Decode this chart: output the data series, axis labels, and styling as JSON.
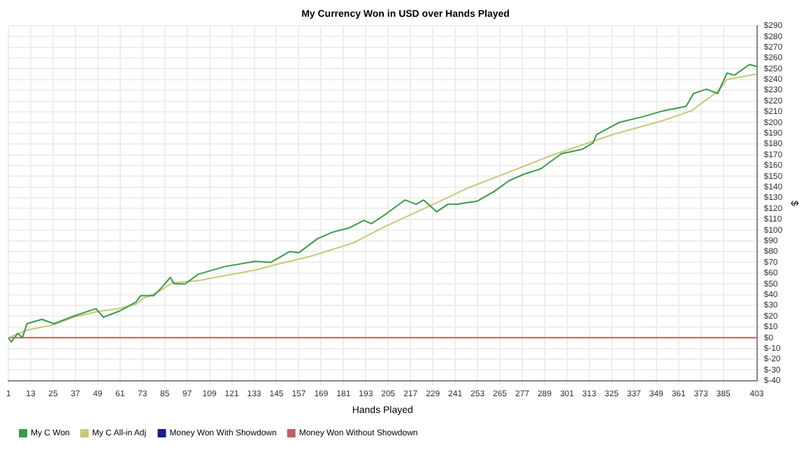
{
  "chart_data": {
    "type": "line",
    "title": "My Currency Won in USD over Hands Played",
    "xlabel": "Hands Played",
    "ylabel": "$",
    "xlim": [
      1,
      403
    ],
    "xticks": [
      1,
      13,
      25,
      37,
      49,
      61,
      73,
      85,
      97,
      109,
      121,
      133,
      145,
      157,
      169,
      181,
      193,
      205,
      217,
      229,
      241,
      253,
      265,
      277,
      289,
      301,
      313,
      325,
      337,
      349,
      361,
      373,
      385,
      403
    ],
    "ylim": [
      -40,
      290
    ],
    "yticks": [
      {
        "value": -40,
        "label": "$-40"
      },
      {
        "value": -30,
        "label": "$-30"
      },
      {
        "value": -20,
        "label": "$-20"
      },
      {
        "value": -10,
        "label": "$-10"
      },
      {
        "value": 0,
        "label": "$0"
      },
      {
        "value": 10,
        "label": "$10"
      },
      {
        "value": 20,
        "label": "$20"
      },
      {
        "value": 30,
        "label": "$30"
      },
      {
        "value": 40,
        "label": "$40"
      },
      {
        "value": 50,
        "label": "$50"
      },
      {
        "value": 60,
        "label": "$60"
      },
      {
        "value": 70,
        "label": "$70"
      },
      {
        "value": 80,
        "label": "$80"
      },
      {
        "value": 90,
        "label": "$90"
      },
      {
        "value": 100,
        "label": "$100"
      },
      {
        "value": 110,
        "label": "$110"
      },
      {
        "value": 120,
        "label": "$120"
      },
      {
        "value": 130,
        "label": "$130"
      },
      {
        "value": 140,
        "label": "$140"
      },
      {
        "value": 150,
        "label": "$150"
      },
      {
        "value": 160,
        "label": "$160"
      },
      {
        "value": 170,
        "label": "$170"
      },
      {
        "value": 180,
        "label": "$180"
      },
      {
        "value": 190,
        "label": "$190"
      },
      {
        "value": 200,
        "label": "$200"
      },
      {
        "value": 210,
        "label": "$210"
      },
      {
        "value": 220,
        "label": "$220"
      },
      {
        "value": 230,
        "label": "$230"
      },
      {
        "value": 240,
        "label": "$240"
      },
      {
        "value": 250,
        "label": "$250"
      },
      {
        "value": 260,
        "label": "$260"
      },
      {
        "value": 270,
        "label": "$270"
      },
      {
        "value": 280,
        "label": "$280"
      },
      {
        "value": 290,
        "label": "$290"
      }
    ],
    "grid": true,
    "legend": "bottom left",
    "series": [
      {
        "name": "My C Won",
        "color": "#3a9a4a",
        "x": [
          1,
          2.5,
          6,
          8.5,
          11,
          19,
          25.5,
          36,
          48,
          52,
          61,
          69.5,
          72,
          79,
          83,
          88,
          90,
          96,
          103,
          117,
          133.5,
          142,
          152,
          157,
          167,
          175,
          184,
          192,
          196,
          203,
          214,
          220,
          224,
          231,
          237,
          242,
          253,
          262,
          270,
          278,
          287,
          298,
          309,
          315,
          317,
          329,
          343,
          353,
          365,
          369,
          376,
          382,
          387,
          391,
          399,
          403
        ],
        "values": [
          0,
          -4,
          4,
          0,
          13,
          17,
          13,
          20,
          27,
          19,
          25,
          33,
          39,
          39,
          46,
          56,
          50,
          50,
          59,
          66,
          71,
          70,
          80,
          79,
          92,
          98,
          102,
          109,
          106,
          114,
          128,
          124,
          128,
          117,
          124,
          124,
          127,
          136,
          146,
          152,
          157,
          171,
          175,
          181,
          189,
          200,
          206,
          211,
          215,
          227,
          231,
          227,
          246,
          244,
          254,
          252
        ]
      },
      {
        "name": "My C All-in Adj",
        "color": "#c8c878",
        "x": [
          1,
          11,
          25,
          36,
          48,
          60,
          69.5,
          74,
          82,
          89,
          103,
          115,
          134,
          145,
          164,
          186,
          203,
          228,
          249,
          270,
          292,
          326,
          353,
          368,
          382,
          387,
          403
        ],
        "values": [
          0,
          7,
          12,
          19,
          24,
          27,
          31,
          37,
          43,
          51,
          53,
          57,
          63,
          68,
          76,
          88,
          103,
          123,
          140,
          154,
          169,
          189,
          202,
          211,
          229,
          240,
          245
        ]
      },
      {
        "name": "Money Won With Showdown",
        "color": "#1a1a8c"
      },
      {
        "name": "Money Won Without Showdown",
        "color": "#c06060",
        "x": [
          1,
          403
        ],
        "values": [
          0,
          0
        ]
      }
    ]
  }
}
